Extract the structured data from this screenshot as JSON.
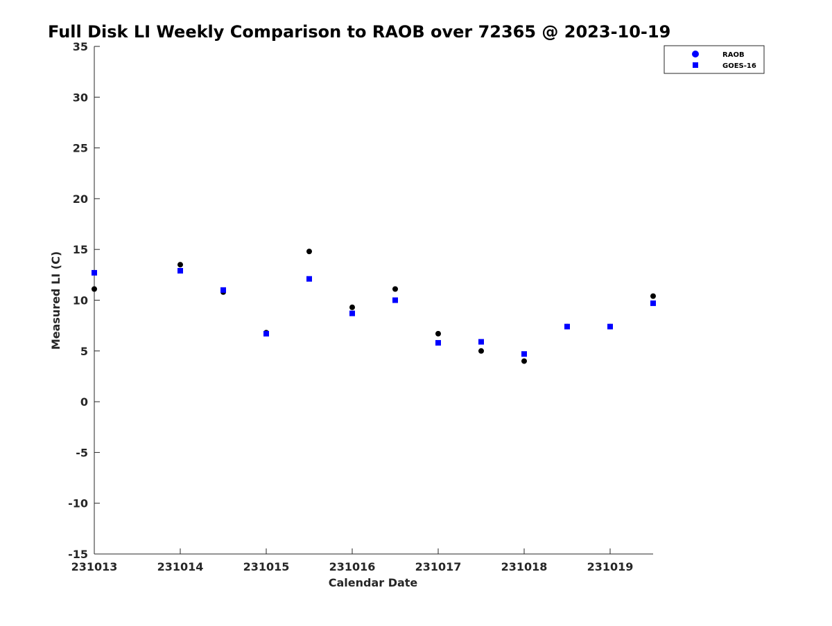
{
  "chart_data": {
    "type": "scatter",
    "title": "Full Disk LI Weekly Comparison to RAOB over 72365 @ 2023-10-19",
    "xlabel": "Calendar Date",
    "ylabel": "Measured LI (C)",
    "xlim": [
      0,
      6.5
    ],
    "ylim": [
      -15,
      35
    ],
    "x_ticks": [
      {
        "value": 0,
        "label": "231013"
      },
      {
        "value": 1,
        "label": "231014"
      },
      {
        "value": 2,
        "label": "231015"
      },
      {
        "value": 3,
        "label": "231016"
      },
      {
        "value": 4,
        "label": "231017"
      },
      {
        "value": 5,
        "label": "231018"
      },
      {
        "value": 6,
        "label": "231019"
      }
    ],
    "y_ticks": [
      {
        "value": 35,
        "label": "35"
      },
      {
        "value": 30,
        "label": "30"
      },
      {
        "value": 25,
        "label": "25"
      },
      {
        "value": 20,
        "label": "20"
      },
      {
        "value": 15,
        "label": "15"
      },
      {
        "value": 10,
        "label": "10"
      },
      {
        "value": 5,
        "label": "5"
      },
      {
        "value": 0,
        "label": "0"
      },
      {
        "value": -5,
        "label": "-5"
      },
      {
        "value": -10,
        "label": "-10"
      },
      {
        "value": -15,
        "label": "-15"
      }
    ],
    "grid": false,
    "legend_position": "top-right",
    "legend": [
      {
        "label": "RAOB",
        "marker": "circle",
        "color": "#0000ff"
      },
      {
        "label": "GOES-16",
        "marker": "square",
        "color": "#0000ff"
      }
    ],
    "series": [
      {
        "name": "RAOB",
        "marker": "circle",
        "color": "#000000",
        "points": [
          {
            "x": 0,
            "y": 11.1
          },
          {
            "x": 1,
            "y": 13.5
          },
          {
            "x": 1.5,
            "y": 10.8
          },
          {
            "x": 2,
            "y": 6.8
          },
          {
            "x": 2.5,
            "y": 14.8
          },
          {
            "x": 3,
            "y": 9.3
          },
          {
            "x": 3.5,
            "y": 11.1
          },
          {
            "x": 4,
            "y": 6.7
          },
          {
            "x": 4.5,
            "y": 5.0
          },
          {
            "x": 5,
            "y": 4.0
          },
          {
            "x": 5.5,
            "y": 7.4
          },
          {
            "x": 6,
            "y": 7.4
          },
          {
            "x": 6.5,
            "y": 10.4
          }
        ]
      },
      {
        "name": "GOES-16",
        "marker": "square",
        "color": "#0000ff",
        "points": [
          {
            "x": 0,
            "y": 12.7
          },
          {
            "x": 1,
            "y": 12.9
          },
          {
            "x": 1.5,
            "y": 11.0
          },
          {
            "x": 2,
            "y": 6.7
          },
          {
            "x": 2.5,
            "y": 12.1
          },
          {
            "x": 3,
            "y": 8.7
          },
          {
            "x": 3.5,
            "y": 10.0
          },
          {
            "x": 4,
            "y": 5.8
          },
          {
            "x": 4.5,
            "y": 5.9
          },
          {
            "x": 5,
            "y": 4.7
          },
          {
            "x": 5.5,
            "y": 7.4
          },
          {
            "x": 6,
            "y": 7.4
          },
          {
            "x": 6.5,
            "y": 9.7
          }
        ]
      }
    ]
  }
}
